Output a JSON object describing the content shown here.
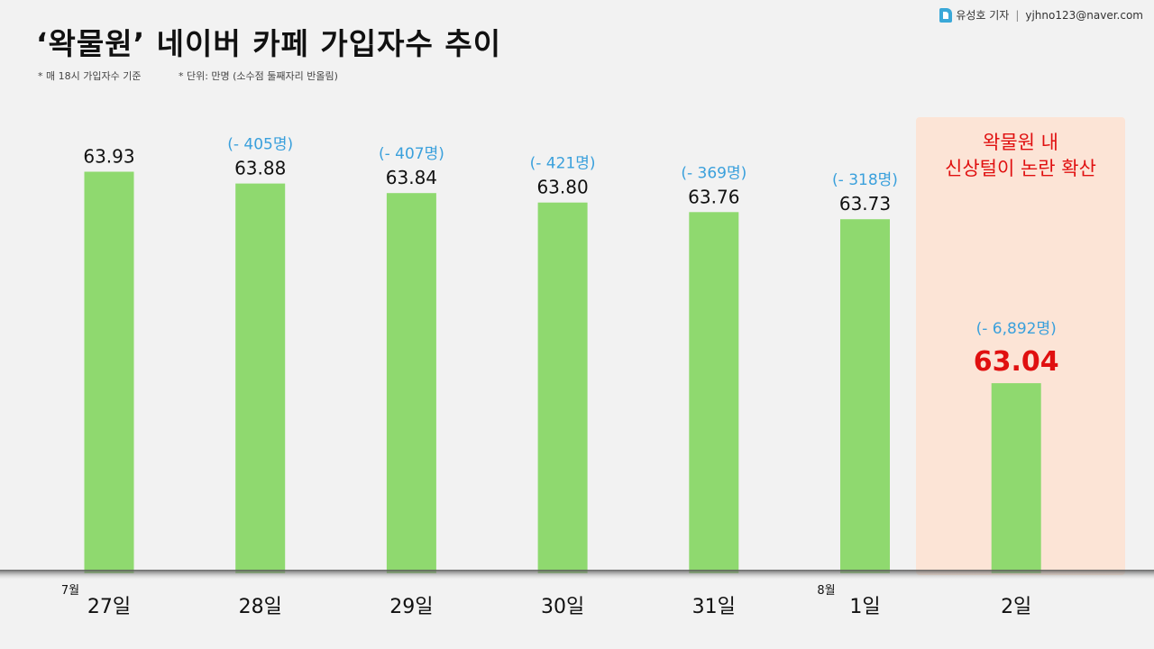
{
  "header": {
    "title": "‘왁물원’ 네이버 카페 가입자수 추이",
    "note1": "* 매 18시 가입자수 기준",
    "note2": "* 단위: 만명 (소수점 둘째자리 반올림)",
    "credit_name": "유성호 기자",
    "credit_sep": "|",
    "credit_email": "yjhno123@naver.com"
  },
  "annotation": {
    "line1": "왁물원 내",
    "line2": "신상털이 논란 확산"
  },
  "colors": {
    "bar": "#8fd96f",
    "highlight_bg": "#fce4d6",
    "highlight_text": "#e01010",
    "diff_text": "#3aa0dc"
  },
  "chart_data": {
    "type": "bar",
    "title": "‘왁물원’ 네이버 카페 가입자수 추이",
    "unit": "만명",
    "categories": [
      "27일",
      "28일",
      "29일",
      "30일",
      "31일",
      "1일",
      "2일"
    ],
    "month_markers": [
      "7월",
      "",
      "",
      "",
      "",
      "8월",
      ""
    ],
    "values": [
      63.93,
      63.88,
      63.84,
      63.8,
      63.76,
      63.73,
      63.04
    ],
    "value_labels": [
      "63.93",
      "63.88",
      "63.84",
      "63.80",
      "63.76",
      "63.73",
      "63.04"
    ],
    "diff_labels": [
      "",
      "(- 405명)",
      "(- 407명)",
      "(- 421명)",
      "(- 369명)",
      "(- 318명)",
      "(- 6,892명)"
    ],
    "highlight_index": 6,
    "ylim": [
      62.24,
      64.0
    ]
  }
}
